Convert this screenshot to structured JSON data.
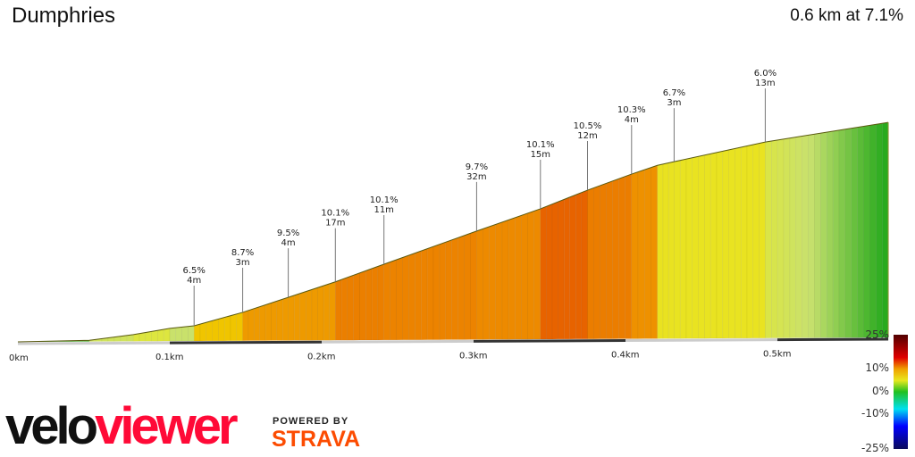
{
  "header": {
    "title": "Dumphries",
    "summary": "0.6 km at 7.1%"
  },
  "chart_data": {
    "type": "area",
    "xlabel": "",
    "ylabel": "",
    "x_ticks": [
      "0km",
      "0.1km",
      "0.2km",
      "0.3km",
      "0.4km",
      "0.5km"
    ],
    "x_tick_values": [
      0,
      0.1,
      0.2,
      0.3,
      0.4,
      0.5
    ],
    "profile": [
      [
        0,
        0
      ],
      [
        0.047,
        0.3
      ],
      [
        0.076,
        1.4
      ],
      [
        0.1,
        2.6
      ],
      [
        0.116,
        3.1
      ],
      [
        0.148,
        5.7
      ],
      [
        0.178,
        8.6
      ],
      [
        0.209,
        11.6
      ],
      [
        0.241,
        15
      ],
      [
        0.302,
        21.4
      ],
      [
        0.344,
        25.7
      ],
      [
        0.375,
        29.3
      ],
      [
        0.404,
        32.4
      ],
      [
        0.421,
        34.1
      ],
      [
        0.432,
        34.8
      ],
      [
        0.492,
        38.6
      ],
      [
        0.573,
        42.4
      ]
    ],
    "markers": [
      {
        "km": 0.116,
        "grade": "6.5%",
        "length": "4m"
      },
      {
        "km": 0.148,
        "grade": "8.7%",
        "length": "3m"
      },
      {
        "km": 0.178,
        "grade": "9.5%",
        "length": "4m"
      },
      {
        "km": 0.209,
        "grade": "10.1%",
        "length": "17m"
      },
      {
        "km": 0.241,
        "grade": "10.1%",
        "length": "11m"
      },
      {
        "km": 0.302,
        "grade": "9.7%",
        "length": "32m"
      },
      {
        "km": 0.344,
        "grade": "10.1%",
        "length": "15m"
      },
      {
        "km": 0.375,
        "grade": "10.5%",
        "length": "12m"
      },
      {
        "km": 0.404,
        "grade": "10.3%",
        "length": "4m"
      },
      {
        "km": 0.432,
        "grade": "6.7%",
        "length": "3m"
      },
      {
        "km": 0.492,
        "grade": "6.0%",
        "length": "13m"
      }
    ],
    "legend": {
      "labels": [
        "25%",
        "10%",
        "0%",
        "-10%",
        "-25%"
      ],
      "values": [
        25,
        10,
        0,
        -10,
        -25
      ],
      "colors": [
        "#0a0a5a",
        "#0000ff",
        "#00e0f0",
        "#20c020",
        "#e8e820",
        "#f0a000",
        "#e00000",
        "#500000"
      ]
    }
  },
  "branding": {
    "logo_part1": "velo",
    "logo_part2": "viewer",
    "powered_by": "POWERED BY",
    "strava": "STRAVA"
  }
}
